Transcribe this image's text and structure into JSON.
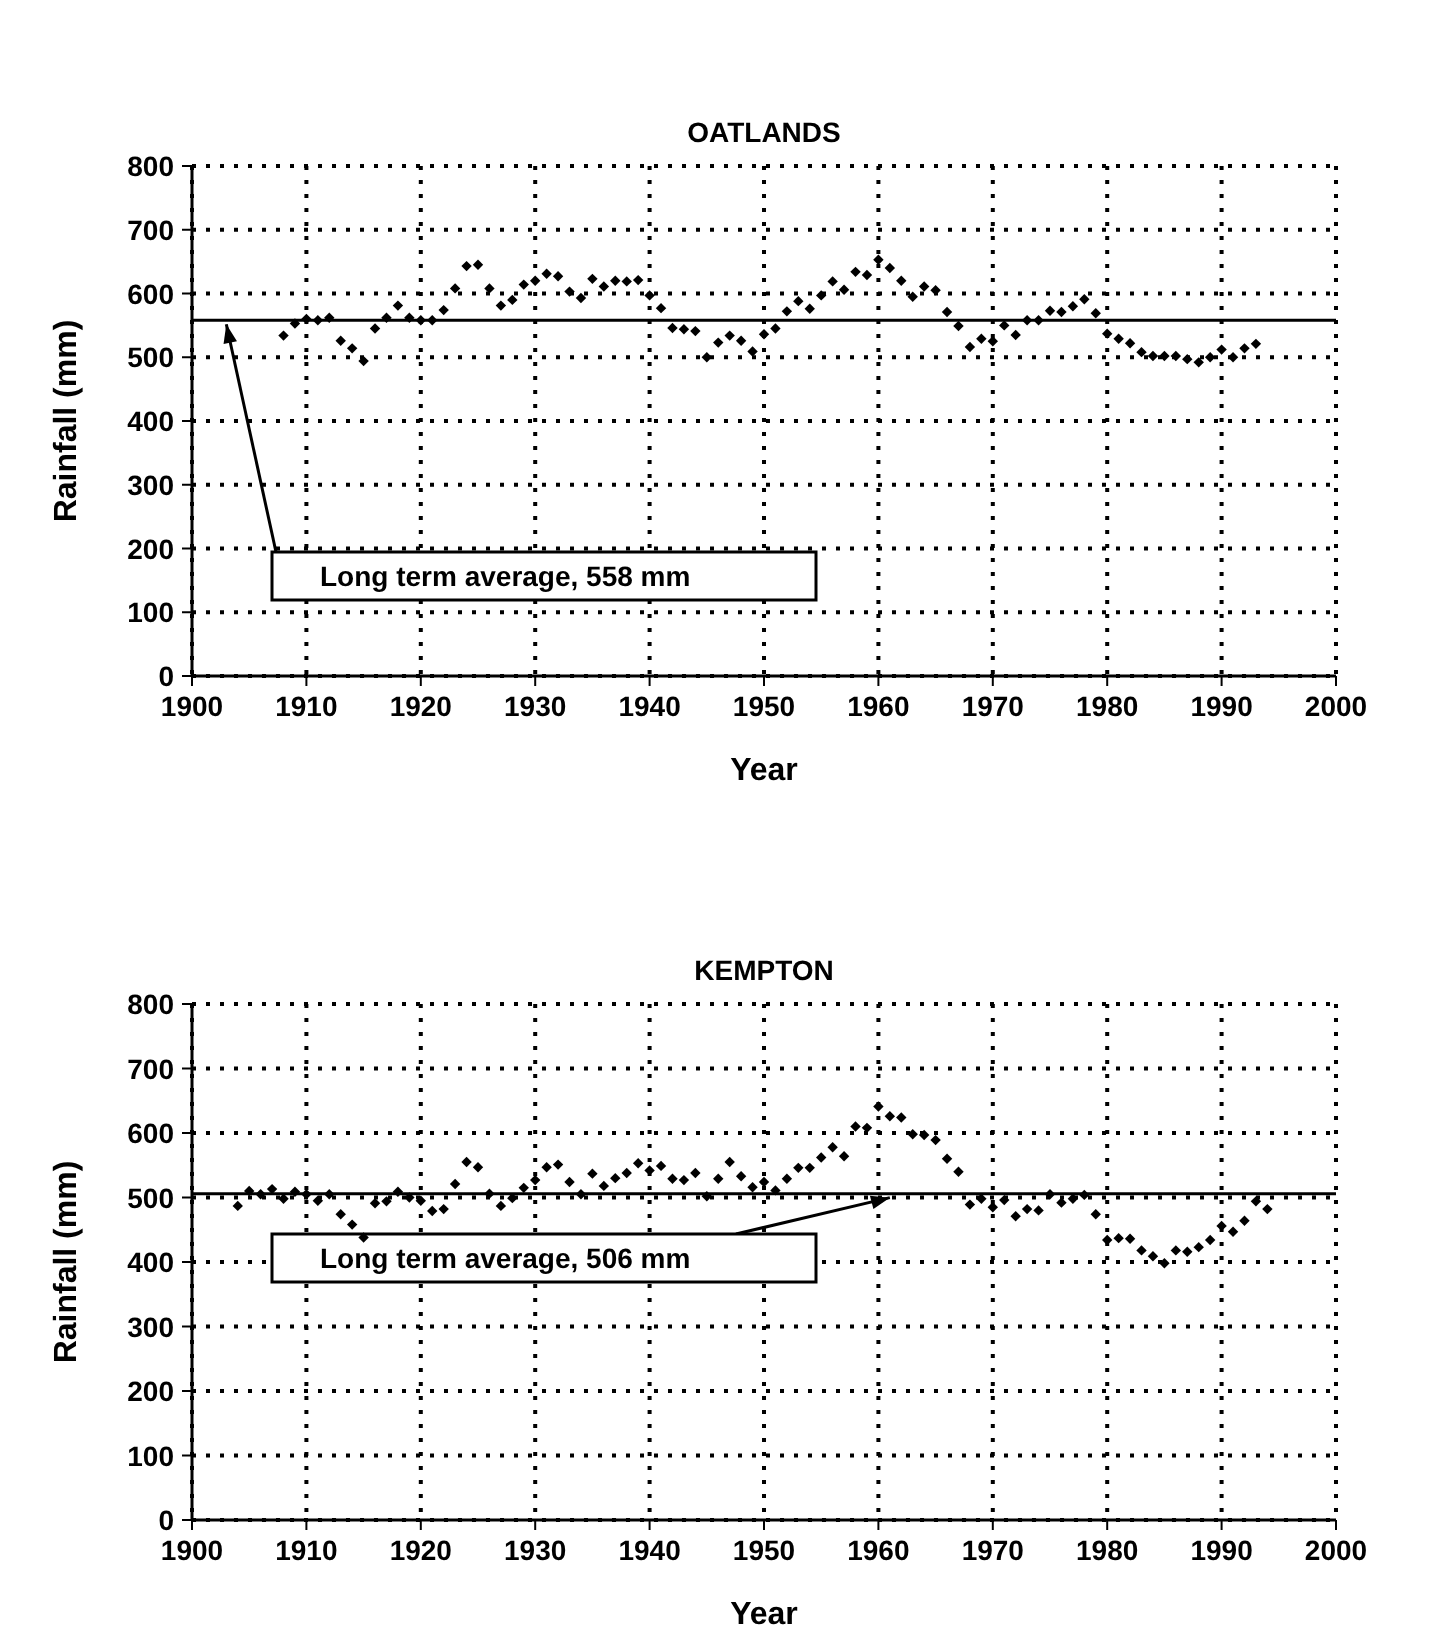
{
  "chart_data": [
    {
      "type": "scatter",
      "title": "OATLANDS",
      "xlabel": "Year",
      "ylabel": "Rainfall (mm)",
      "xlim": [
        1900,
        2000
      ],
      "xticks": [
        1900,
        1910,
        1920,
        1930,
        1940,
        1950,
        1960,
        1970,
        1980,
        1990,
        2000
      ],
      "ylim": [
        0,
        800
      ],
      "yticks": [
        0,
        100,
        200,
        300,
        400,
        500,
        600,
        700,
        800
      ],
      "grid": true,
      "marker": "diamond",
      "ref_lines": [
        {
          "axis": "y",
          "value": 558,
          "label": "Long term average, 558 mm",
          "color": "#000000"
        }
      ],
      "series": [
        {
          "color": "#000000",
          "x": [
            1908,
            1909,
            1910,
            1911,
            1912,
            1913,
            1914,
            1915,
            1916,
            1917,
            1918,
            1919,
            1920,
            1921,
            1922,
            1923,
            1924,
            1925,
            1926,
            1927,
            1928,
            1929,
            1930,
            1931,
            1932,
            1933,
            1934,
            1935,
            1936,
            1937,
            1938,
            1939,
            1940,
            1941,
            1942,
            1943,
            1944,
            1945,
            1946,
            1947,
            1948,
            1949,
            1950,
            1951,
            1952,
            1953,
            1954,
            1955,
            1956,
            1957,
            1958,
            1959,
            1960,
            1961,
            1962,
            1963,
            1964,
            1965,
            1966,
            1967,
            1968,
            1969,
            1970,
            1971,
            1972,
            1973,
            1974,
            1975,
            1976,
            1977,
            1978,
            1979,
            1980,
            1981,
            1982,
            1983,
            1984,
            1985,
            1986,
            1987,
            1988,
            1989,
            1990,
            1991,
            1992,
            1993
          ],
          "values": [
            534,
            553,
            560,
            558,
            562,
            526,
            514,
            494,
            545,
            562,
            581,
            562,
            558,
            558,
            574,
            608,
            643,
            645,
            608,
            581,
            590,
            614,
            620,
            631,
            627,
            603,
            593,
            623,
            611,
            620,
            619,
            621,
            597,
            577,
            546,
            544,
            541,
            500,
            523,
            534,
            526,
            509,
            536,
            545,
            572,
            588,
            576,
            597,
            619,
            606,
            634,
            629,
            653,
            640,
            620,
            595,
            611,
            605,
            571,
            549,
            516,
            529,
            525,
            550,
            535,
            558,
            558,
            573,
            571,
            580,
            591,
            569,
            537,
            529,
            522,
            508,
            502,
            502,
            502,
            497,
            492,
            500,
            512,
            500,
            514,
            521
          ]
        }
      ]
    },
    {
      "type": "scatter",
      "title": "KEMPTON",
      "xlabel": "Year",
      "ylabel": "Rainfall (mm)",
      "xlim": [
        1900,
        2000
      ],
      "xticks": [
        1900,
        1910,
        1920,
        1930,
        1940,
        1950,
        1960,
        1970,
        1980,
        1990,
        2000
      ],
      "ylim": [
        0,
        800
      ],
      "yticks": [
        0,
        100,
        200,
        300,
        400,
        500,
        600,
        700,
        800
      ],
      "grid": true,
      "marker": "diamond",
      "ref_lines": [
        {
          "axis": "y",
          "value": 506,
          "label": "Long term average, 506 mm",
          "color": "#000000"
        }
      ],
      "series": [
        {
          "color": "#000000",
          "x": [
            1904,
            1905,
            1906,
            1907,
            1908,
            1909,
            1910,
            1911,
            1912,
            1913,
            1914,
            1915,
            1916,
            1917,
            1918,
            1919,
            1920,
            1921,
            1922,
            1923,
            1924,
            1925,
            1926,
            1927,
            1928,
            1929,
            1930,
            1931,
            1932,
            1933,
            1934,
            1935,
            1936,
            1937,
            1938,
            1939,
            1940,
            1941,
            1942,
            1943,
            1944,
            1945,
            1946,
            1947,
            1948,
            1949,
            1950,
            1951,
            1952,
            1953,
            1954,
            1955,
            1956,
            1957,
            1958,
            1959,
            1960,
            1961,
            1962,
            1963,
            1964,
            1965,
            1966,
            1967,
            1968,
            1969,
            1970,
            1971,
            1972,
            1973,
            1974,
            1975,
            1976,
            1977,
            1978,
            1979,
            1980,
            1981,
            1982,
            1983,
            1984,
            1985,
            1986,
            1987,
            1988,
            1989,
            1990,
            1991,
            1992,
            1993,
            1994
          ],
          "values": [
            487,
            510,
            505,
            513,
            498,
            509,
            505,
            495,
            505,
            474,
            458,
            438,
            491,
            494,
            509,
            500,
            495,
            479,
            482,
            521,
            555,
            547,
            506,
            487,
            499,
            515,
            527,
            547,
            551,
            524,
            505,
            537,
            518,
            530,
            538,
            553,
            542,
            549,
            529,
            527,
            538,
            502,
            529,
            555,
            533,
            516,
            524,
            511,
            529,
            546,
            546,
            562,
            578,
            564,
            610,
            608,
            641,
            626,
            624,
            598,
            597,
            589,
            560,
            540,
            489,
            498,
            485,
            496,
            471,
            482,
            480,
            505,
            492,
            498,
            504,
            474,
            434,
            437,
            436,
            418,
            409,
            398,
            418,
            416,
            423,
            434,
            456,
            447,
            464,
            494,
            482
          ]
        }
      ]
    }
  ]
}
